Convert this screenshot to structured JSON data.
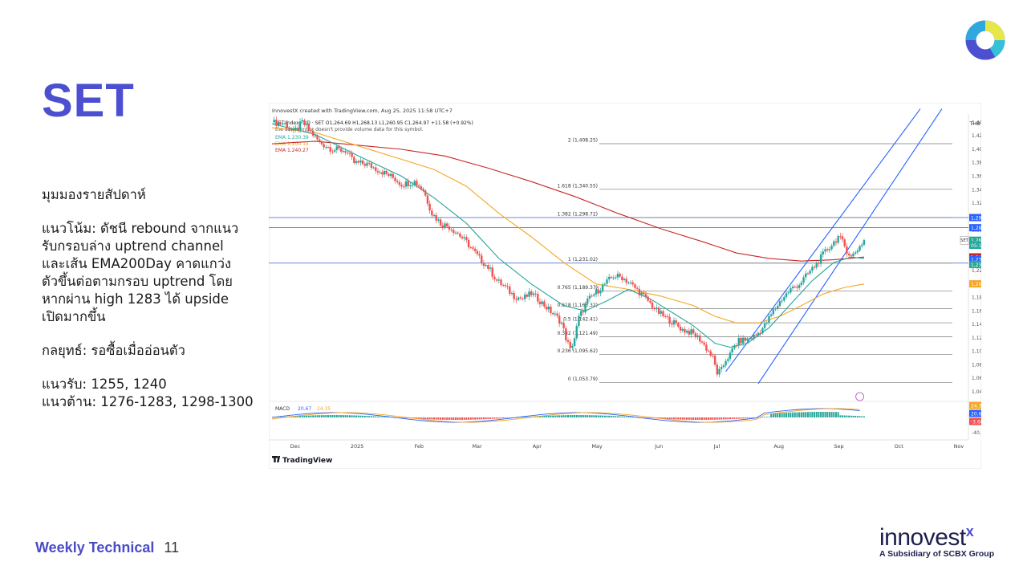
{
  "slide": {
    "title": "SET",
    "footer_label": "Weekly Technical",
    "page_number": "11",
    "brand": "innovest",
    "brand_x": "x",
    "brand_sub": "A Subsidiary of SCBX Group"
  },
  "commentary": [
    [
      "มุมมองรายสัปดาห์"
    ],
    [
      "แนวโน้ม: ดัชนี rebound จากแนว",
      "รับกรอบล่าง uptrend channel",
      "และเส้น EMA200Day คาดแกว่ง",
      "ตัวขึ้นต่อตามกรอบ uptrend โดย",
      "หากผ่าน high 1283 ได้ upside",
      "เปิดมากขึ้น"
    ],
    [
      "กลยุทธ์: รอซื้อเมื่ออ่อนตัว"
    ],
    [
      "แนวรับ: 1255, 1240",
      "แนวต้าน: 1276-1283, 1298-1300"
    ]
  ],
  "chart_data": {
    "type": "candlestick",
    "header": "InnovestX created with TradingView.com, Aug 25, 2025 11:58 UTC+7",
    "symbol_line": "SET Index · 1D · SET  O1,264.69 H1,268.13 L1,260.95 C1,264.97 +11.58 (+0.92%)",
    "volume_note": "the data vendor doesn't provide volume data for this symbol.",
    "indicators": [
      {
        "name": "EMA",
        "value": "1,230.39",
        "color": "#26a69a"
      },
      {
        "name": "EMA",
        "value": "1,200.18",
        "color": "#f5a623"
      },
      {
        "name": "EMA",
        "value": "1,240.27",
        "color": "#c62828"
      }
    ],
    "currency": "THB",
    "xlabels": [
      "Dec",
      "2025",
      "Feb",
      "Mar",
      "Apr",
      "May",
      "Jun",
      "Jul",
      "Aug",
      "Sep",
      "Oct",
      "Nov"
    ],
    "ylim": [
      1040,
      1450
    ],
    "yticks": [
      "1,440.00",
      "1,420.00",
      "1,400.00",
      "1,380.00",
      "1,360.00",
      "1,340.00",
      "1,320.00",
      "1,300.00",
      "1,280.00",
      "1,260.00",
      "1,240.00",
      "1,220.00",
      "1,200.00",
      "1,180.00",
      "1,160.00",
      "1,140.00",
      "1,120.00",
      "1,100.00",
      "1,080.00",
      "1,060.00",
      "1,040.00"
    ],
    "fib_levels": [
      {
        "label": "2 (1,408.25)",
        "value": 1408.25
      },
      {
        "label": "1.618 (1,340.55)",
        "value": 1340.55
      },
      {
        "label": "1.382 (1,298.72)",
        "value": 1298.72
      },
      {
        "label": "1 (1,231.02)",
        "value": 1231.02
      },
      {
        "label": "0.765 (1,189.37)",
        "value": 1189.37
      },
      {
        "label": "0.618 (1,163.32)",
        "value": 1163.32
      },
      {
        "label": "0.5 (1,142.41)",
        "value": 1142.41
      },
      {
        "label": "0.382 (1,121.49)",
        "value": 1121.49
      },
      {
        "label": "0.236 (1,095.62)",
        "value": 1095.62
      },
      {
        "label": "0 (1,053.79)",
        "value": 1053.79
      }
    ],
    "horizontal_lines": [
      1298.63,
      1283.55,
      1231.0
    ],
    "price_badges": [
      {
        "label": "1,298.63",
        "value": 1298.63,
        "color": "#2962ff"
      },
      {
        "label": "1,283.55",
        "value": 1283.55,
        "color": "#2962ff"
      },
      {
        "label": "1,264.97",
        "value": 1264.97,
        "color": "#26a69a"
      },
      {
        "label": "05:16:07",
        "value": 1257.5,
        "color": "#26a69a"
      },
      {
        "label": "1,240.27",
        "value": 1240.27,
        "color": "#c62828"
      },
      {
        "label": "1,238.06",
        "value": 1236.5,
        "color": "#2962ff"
      },
      {
        "label": "1,230.39",
        "value": 1229.0,
        "color": "#26a69a"
      },
      {
        "label": "1,200.18",
        "value": 1200.18,
        "color": "#f5a623"
      }
    ],
    "symbol_badge": "SET",
    "close_path": [
      [
        0,
        1440
      ],
      [
        6,
        1438
      ],
      [
        10,
        1425
      ],
      [
        14,
        1440
      ],
      [
        18,
        1426
      ],
      [
        22,
        1410
      ],
      [
        28,
        1400
      ],
      [
        34,
        1398
      ],
      [
        38,
        1380
      ],
      [
        44,
        1378
      ],
      [
        50,
        1368
      ],
      [
        56,
        1358
      ],
      [
        60,
        1348
      ],
      [
        66,
        1352
      ],
      [
        70,
        1340
      ],
      [
        74,
        1305
      ],
      [
        78,
        1290
      ],
      [
        82,
        1285
      ],
      [
        86,
        1275
      ],
      [
        90,
        1262
      ],
      [
        96,
        1238
      ],
      [
        100,
        1225
      ],
      [
        104,
        1205
      ],
      [
        108,
        1195
      ],
      [
        112,
        1182
      ],
      [
        116,
        1178
      ],
      [
        120,
        1186
      ],
      [
        124,
        1175
      ],
      [
        128,
        1162
      ],
      [
        132,
        1150
      ],
      [
        134,
        1142
      ],
      [
        136,
        1120
      ],
      [
        138,
        1102
      ],
      [
        140,
        1120
      ],
      [
        142,
        1150
      ],
      [
        144,
        1162
      ],
      [
        146,
        1175
      ],
      [
        150,
        1188
      ],
      [
        154,
        1200
      ],
      [
        158,
        1212
      ],
      [
        162,
        1210
      ],
      [
        166,
        1200
      ],
      [
        170,
        1188
      ],
      [
        174,
        1175
      ],
      [
        178,
        1160
      ],
      [
        182,
        1150
      ],
      [
        186,
        1142
      ],
      [
        190,
        1132
      ],
      [
        194,
        1128
      ],
      [
        198,
        1118
      ],
      [
        202,
        1100
      ],
      [
        204,
        1090
      ],
      [
        206,
        1068
      ],
      [
        208,
        1072
      ],
      [
        210,
        1088
      ],
      [
        212,
        1095
      ],
      [
        214,
        1108
      ],
      [
        216,
        1115
      ],
      [
        220,
        1118
      ],
      [
        224,
        1124
      ],
      [
        228,
        1138
      ],
      [
        232,
        1160
      ],
      [
        236,
        1178
      ],
      [
        240,
        1192
      ],
      [
        244,
        1200
      ],
      [
        248,
        1215
      ],
      [
        252,
        1230
      ],
      [
        256,
        1248
      ],
      [
        260,
        1262
      ],
      [
        262,
        1270
      ],
      [
        264,
        1262
      ],
      [
        266,
        1250
      ],
      [
        268,
        1240
      ],
      [
        270,
        1248
      ],
      [
        272,
        1256
      ],
      [
        274,
        1265
      ]
    ],
    "ema_fast": [
      [
        0,
        1438
      ],
      [
        20,
        1422
      ],
      [
        40,
        1390
      ],
      [
        60,
        1360
      ],
      [
        75,
        1328
      ],
      [
        90,
        1290
      ],
      [
        105,
        1238
      ],
      [
        120,
        1200
      ],
      [
        135,
        1168
      ],
      [
        145,
        1160
      ],
      [
        155,
        1175
      ],
      [
        165,
        1192
      ],
      [
        175,
        1178
      ],
      [
        185,
        1158
      ],
      [
        195,
        1138
      ],
      [
        205,
        1112
      ],
      [
        212,
        1106
      ],
      [
        220,
        1112
      ],
      [
        230,
        1135
      ],
      [
        240,
        1170
      ],
      [
        250,
        1205
      ],
      [
        260,
        1232
      ],
      [
        268,
        1240
      ],
      [
        274,
        1238
      ]
    ],
    "ema_mid": [
      [
        0,
        1432
      ],
      [
        20,
        1425
      ],
      [
        40,
        1405
      ],
      [
        60,
        1385
      ],
      [
        75,
        1370
      ],
      [
        90,
        1345
      ],
      [
        105,
        1305
      ],
      [
        120,
        1270
      ],
      [
        135,
        1232
      ],
      [
        150,
        1200
      ],
      [
        165,
        1192
      ],
      [
        180,
        1182
      ],
      [
        195,
        1168
      ],
      [
        205,
        1152
      ],
      [
        215,
        1142
      ],
      [
        225,
        1142
      ],
      [
        235,
        1152
      ],
      [
        245,
        1168
      ],
      [
        255,
        1185
      ],
      [
        265,
        1195
      ],
      [
        274,
        1200
      ]
    ],
    "ema_slow": [
      [
        0,
        1408
      ],
      [
        20,
        1412
      ],
      [
        40,
        1406
      ],
      [
        60,
        1400
      ],
      [
        80,
        1390
      ],
      [
        100,
        1372
      ],
      [
        120,
        1352
      ],
      [
        140,
        1330
      ],
      [
        160,
        1305
      ],
      [
        180,
        1282
      ],
      [
        200,
        1262
      ],
      [
        215,
        1246
      ],
      [
        230,
        1238
      ],
      [
        245,
        1234
      ],
      [
        260,
        1236
      ],
      [
        274,
        1240
      ]
    ],
    "channel_upper": [
      [
        210,
        1070
      ],
      [
        300,
        1460
      ]
    ],
    "channel_lower": [
      [
        225,
        1052
      ],
      [
        310,
        1460
      ]
    ],
    "macd": {
      "label": "MACD",
      "values": [
        "20.67",
        "24.35"
      ],
      "badges": [
        "24.35",
        "20.67",
        "-3.68"
      ],
      "ytick": "-40.00"
    }
  }
}
